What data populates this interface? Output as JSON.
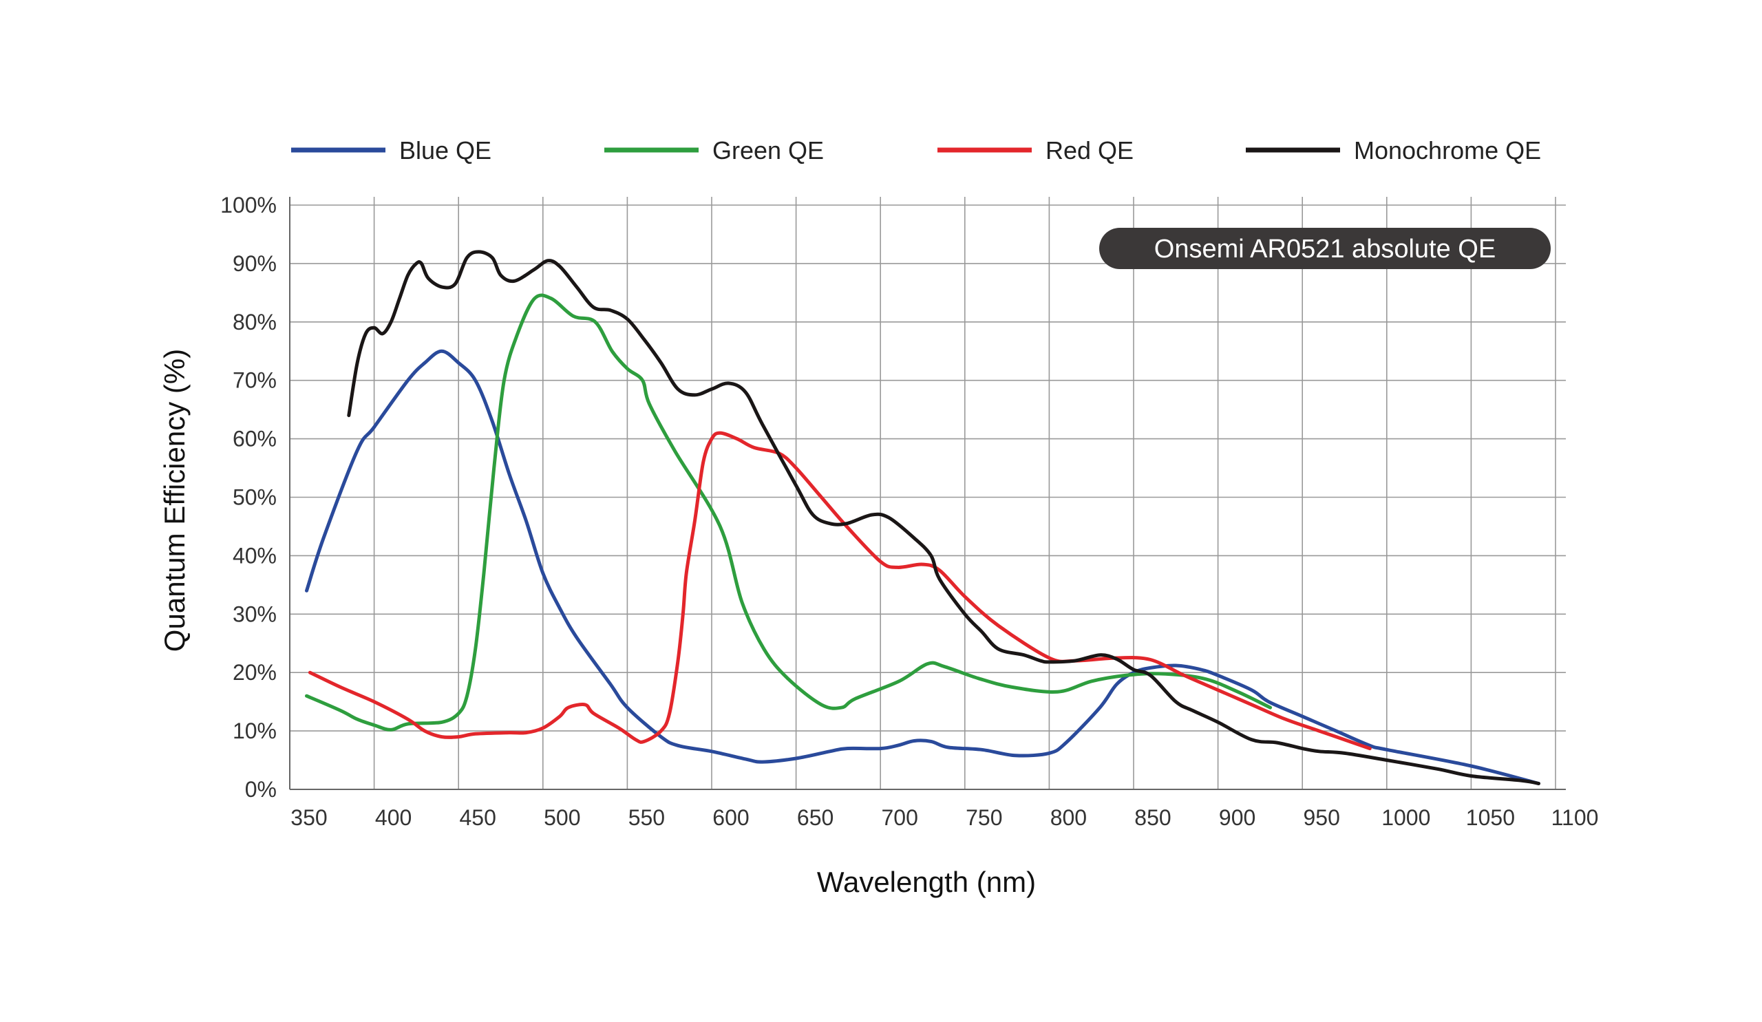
{
  "chart_data": {
    "type": "line",
    "title": "",
    "annotation": "Onsemi AR0521 absolute QE",
    "xlabel": "Wavelength (nm)",
    "ylabel": "Quantum Efficiency (%)",
    "xlim": [
      350,
      1100
    ],
    "ylim": [
      0,
      100
    ],
    "grid": true,
    "legend_position": "top",
    "x_ticks": [
      "350",
      "400",
      "450",
      "500",
      "550",
      "600",
      "650",
      "700",
      "750",
      "800",
      "850",
      "900",
      "950",
      "1000",
      "1050",
      "1100"
    ],
    "y_ticks": [
      "0%",
      "10%",
      "20%",
      "30%",
      "40%",
      "50%",
      "60%",
      "70%",
      "80%",
      "90%",
      "100%"
    ],
    "series": [
      {
        "name": "Blue QE",
        "color": "#2a4a9b",
        "x": [
          360,
          370,
          390,
          400,
          420,
          430,
          440,
          450,
          460,
          470,
          480,
          490,
          500,
          510,
          520,
          540,
          550,
          570,
          580,
          600,
          620,
          630,
          650,
          670,
          680,
          700,
          710,
          720,
          730,
          740,
          760,
          780,
          800,
          810,
          830,
          840,
          850,
          860,
          875,
          890,
          900,
          920,
          930,
          950,
          970,
          990,
          1000,
          1050,
          1090
        ],
        "y": [
          34,
          43,
          58,
          62,
          70,
          73,
          75,
          73,
          70,
          63,
          54,
          46,
          37,
          31,
          26,
          18,
          14,
          9,
          7.5,
          6.5,
          5.2,
          4.7,
          5.3,
          6.5,
          7,
          7,
          7.5,
          8.3,
          8.2,
          7.2,
          6.8,
          5.8,
          6.2,
          8,
          14,
          18,
          20,
          20.8,
          21.2,
          20.5,
          19.5,
          17,
          15,
          12.5,
          10,
          7.5,
          6.8,
          4,
          1
        ]
      },
      {
        "name": "Green QE",
        "color": "#2e9e3e",
        "x": [
          360,
          380,
          390,
          400,
          410,
          420,
          440,
          450,
          455,
          460,
          465,
          471,
          477,
          485,
          495,
          505,
          518,
          531,
          541,
          550,
          559,
          563,
          578,
          605,
          618,
          631,
          645,
          665,
          677,
          685,
          711,
          728,
          738,
          758,
          778,
          805,
          825,
          845,
          865,
          891,
          911,
          931
        ],
        "y": [
          16,
          13.5,
          12,
          11,
          10.2,
          11.2,
          11.5,
          13,
          16,
          24,
          37,
          55,
          70,
          78,
          84,
          84,
          81,
          80,
          75,
          72,
          70,
          66,
          58,
          45,
          32,
          24,
          19,
          14.5,
          14,
          15.5,
          18.5,
          21.5,
          21,
          19,
          17.5,
          16.7,
          18.5,
          19.5,
          19.8,
          19,
          16.8,
          14
        ]
      },
      {
        "name": "Red QE",
        "color": "#e3262b",
        "x": [
          362,
          380,
          400,
          420,
          430,
          440,
          450,
          460,
          480,
          490,
          500,
          510,
          515,
          525,
          530,
          545,
          555,
          560,
          570,
          575,
          580,
          583,
          585,
          590,
          595,
          600,
          605,
          615,
          625,
          640,
          650,
          665,
          680,
          700,
          710,
          725,
          735,
          750,
          770,
          800,
          815,
          840,
          860,
          880,
          900,
          920,
          940,
          960,
          980,
          990
        ],
        "y": [
          20,
          17.5,
          15,
          12,
          10,
          9,
          9,
          9.5,
          9.7,
          9.7,
          10.5,
          12.5,
          14,
          14.5,
          13,
          10.5,
          8.5,
          8.2,
          10,
          13,
          22,
          30,
          37,
          46,
          56,
          60,
          61,
          60,
          58.5,
          57.5,
          55,
          50,
          45,
          39,
          38,
          38.5,
          37.5,
          33,
          28,
          22.5,
          22,
          22.5,
          22.2,
          19.5,
          17,
          14.5,
          12,
          10,
          8,
          7
        ]
      },
      {
        "name": "Monochrome QE",
        "color": "#1a1616",
        "x": [
          385,
          390,
          395,
          400,
          405,
          410,
          415,
          420,
          425,
          428,
          432,
          440,
          448,
          455,
          462,
          470,
          475,
          483,
          495,
          503,
          510,
          520,
          530,
          540,
          550,
          560,
          570,
          580,
          590,
          600,
          610,
          620,
          630,
          650,
          660,
          670,
          680,
          695,
          705,
          720,
          730,
          735,
          750,
          760,
          770,
          785,
          795,
          800,
          815,
          830,
          840,
          850,
          860,
          875,
          885,
          900,
          920,
          935,
          950,
          960,
          975,
          1000,
          1030,
          1050,
          1080,
          1090
        ],
        "y": [
          64,
          73,
          78,
          79,
          78,
          80,
          84,
          88,
          90,
          90,
          87.5,
          86,
          86.5,
          91,
          92,
          91,
          88,
          87,
          89,
          90.5,
          89.5,
          86,
          82.5,
          82,
          80.5,
          77,
          73,
          68.5,
          67.5,
          68.5,
          69.5,
          68,
          62.5,
          52,
          47,
          45.5,
          45.5,
          47,
          46.5,
          43,
          40,
          36,
          30,
          27,
          24,
          23,
          22,
          21.8,
          22,
          23,
          22.3,
          20.5,
          19.5,
          15,
          13.5,
          11.5,
          8.5,
          8,
          7,
          6.5,
          6.2,
          5,
          3.5,
          2.3,
          1.5,
          1
        ]
      }
    ]
  }
}
